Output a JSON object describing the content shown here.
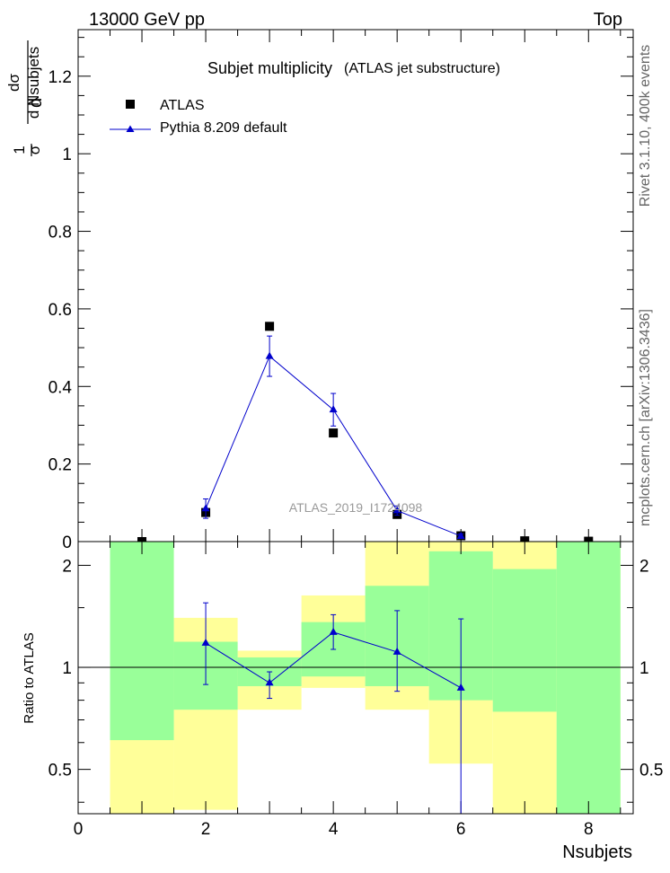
{
  "header": {
    "left": "13000 GeV pp",
    "right": "Top"
  },
  "side_labels": {
    "rivet": "Rivet 3.1.10,  400k events",
    "mcplots": "mcplots.cern.ch [arXiv:1306.3436]"
  },
  "chart_data": {
    "type": "scatter",
    "title": "Subjet multiplicity",
    "subtitle": "(ATLAS jet substructure)",
    "xlabel": "Nsubjets",
    "ylabel": "1/σ dσ/d Nsubjets",
    "ylabel_parts": {
      "frac1_num": "1",
      "frac1_den": "σ",
      "d_prefix": "d",
      "frac2_num": "dσ",
      "frac2_den": "d Nsubjets"
    },
    "analysis_id": "ATLAS_2019_I1724098",
    "xlim": [
      0,
      8.7
    ],
    "ylim": [
      0,
      1.32
    ],
    "xticks": [
      0,
      2,
      4,
      6,
      8
    ],
    "yticks": [
      0,
      0.2,
      0.4,
      0.6,
      0.8,
      1,
      1.2
    ],
    "series": [
      {
        "name": "ATLAS",
        "color": "#000000",
        "marker": "square",
        "x": [
          1,
          2,
          3,
          4,
          5,
          6,
          7,
          8
        ],
        "y": [
          0.0,
          0.075,
          0.555,
          0.28,
          0.07,
          0.015,
          0.002,
          0.001
        ]
      },
      {
        "name": "Pythia 8.209 default",
        "color": "#0000cc",
        "marker": "triangle",
        "x": [
          2,
          3,
          4,
          5,
          6
        ],
        "y": [
          0.085,
          0.478,
          0.34,
          0.08,
          0.014
        ],
        "yerr": [
          0.025,
          0.052,
          0.042,
          0.012,
          0.006
        ]
      }
    ],
    "ratio": {
      "ylabel": "Ratio to ATLAS",
      "ylim": [
        0.37,
        2.35
      ],
      "yticks": [
        0.5,
        1,
        2
      ],
      "reference": 1,
      "yellow_band": [
        {
          "x0": 0.5,
          "x1": 1.5,
          "lo": 0.37,
          "hi": 2.35
        },
        {
          "x0": 1.5,
          "x1": 2.5,
          "lo": 0.38,
          "hi": 1.4
        },
        {
          "x0": 2.5,
          "x1": 3.5,
          "lo": 0.75,
          "hi": 1.12
        },
        {
          "x0": 3.5,
          "x1": 4.5,
          "lo": 0.87,
          "hi": 1.63
        },
        {
          "x0": 4.5,
          "x1": 5.5,
          "lo": 0.75,
          "hi": 2.35
        },
        {
          "x0": 5.5,
          "x1": 6.5,
          "lo": 0.52,
          "hi": 2.35
        },
        {
          "x0": 6.5,
          "x1": 7.5,
          "lo": 0.37,
          "hi": 2.35
        },
        {
          "x0": 7.5,
          "x1": 8.5,
          "lo": 0.37,
          "hi": 2.35
        }
      ],
      "green_band": [
        {
          "x0": 0.5,
          "x1": 1.5,
          "lo": 0.61,
          "hi": 2.35
        },
        {
          "x0": 1.5,
          "x1": 2.5,
          "lo": 0.75,
          "hi": 1.19
        },
        {
          "x0": 2.5,
          "x1": 3.5,
          "lo": 0.88,
          "hi": 1.07
        },
        {
          "x0": 3.5,
          "x1": 4.5,
          "lo": 0.94,
          "hi": 1.36
        },
        {
          "x0": 4.5,
          "x1": 5.5,
          "lo": 0.88,
          "hi": 1.74
        },
        {
          "x0": 5.5,
          "x1": 6.5,
          "lo": 0.8,
          "hi": 2.2
        },
        {
          "x0": 6.5,
          "x1": 7.5,
          "lo": 0.74,
          "hi": 1.95
        },
        {
          "x0": 7.5,
          "x1": 8.5,
          "lo": 0.37,
          "hi": 2.35
        }
      ],
      "pythia": {
        "x": [
          2,
          3,
          4,
          5,
          6
        ],
        "y": [
          1.18,
          0.9,
          1.27,
          1.11,
          0.87
        ],
        "lo": [
          0.89,
          0.81,
          1.13,
          0.85,
          0.33
        ],
        "hi": [
          1.55,
          0.97,
          1.43,
          1.47,
          1.39
        ]
      }
    }
  }
}
